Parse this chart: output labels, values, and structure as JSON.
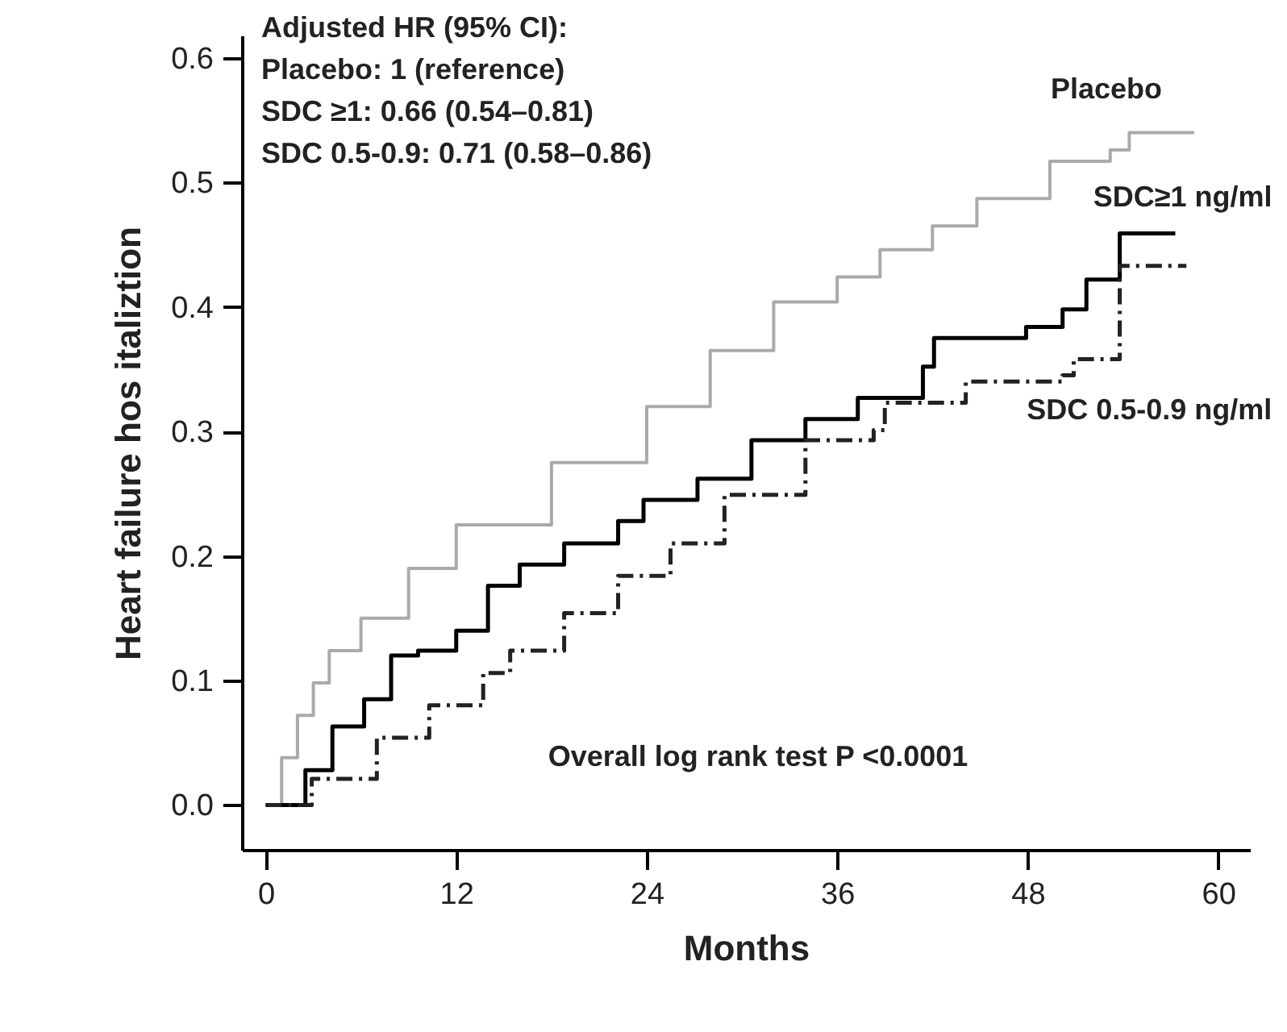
{
  "chart_data": {
    "type": "step",
    "xlabel": "Months",
    "ylabel": "Heart failure hos  italiztion",
    "annotations": [
      "Adjusted HR (95% CI):",
      "Placebo: 1 (reference)",
      "SDC ≥1:  0.66 (0.54–0.81)",
      "SDC 0.5-0.9: 0.71 (0.58–0.86)",
      "Overall log rank test P <0.0001"
    ],
    "xlim": [
      -1.5,
      62
    ],
    "xticks": [
      0,
      12,
      24,
      36,
      48,
      60
    ],
    "ylim": [
      -0.036,
      0.618
    ],
    "yticks": [
      {
        "value": 0,
        "label": "0.0"
      },
      0.1,
      0.2,
      0.3,
      0.4,
      0.5,
      0.6
    ],
    "grid": false,
    "legend": false,
    "series": [
      {
        "name": "Placebo",
        "color": "#aaaaaa",
        "line_style": "solid",
        "x": [
          0,
          1,
          2,
          3,
          4,
          6,
          9,
          12,
          18,
          24,
          28,
          32,
          36,
          38.7,
          42,
          44.8,
          49.4,
          53.2,
          54.4,
          58.5
        ],
        "values": [
          0,
          0.038,
          0.072,
          0.098,
          0.124,
          0.15,
          0.19,
          0.225,
          0.275,
          0.32,
          0.365,
          0.404,
          0.424,
          0.446,
          0.465,
          0.487,
          0.517,
          0.526,
          0.54,
          0.54
        ]
      },
      {
        "name": "SDC≥1 ng/ml",
        "color": "#000000",
        "line_style": "solid",
        "x": [
          0,
          2.5,
          4.2,
          6.2,
          7.9,
          9.6,
          12,
          14,
          16,
          18.8,
          22.2,
          23.8,
          27.2,
          30.6,
          34,
          37.3,
          41.4,
          42.1,
          47.9,
          50.2,
          51.7,
          53.8,
          57.3
        ],
        "values": [
          0,
          0.028,
          0.063,
          0.085,
          0.12,
          0.124,
          0.14,
          0.176,
          0.193,
          0.21,
          0.228,
          0.245,
          0.262,
          0.293,
          0.31,
          0.327,
          0.352,
          0.375,
          0.384,
          0.398,
          0.422,
          0.459,
          0.459
        ]
      },
      {
        "name": "SDC 0.5-0.9 ng/ml",
        "color": "#222222",
        "line_style": "dashed",
        "x": [
          0,
          2.9,
          7,
          10.3,
          13.7,
          15.4,
          18.8,
          22.2,
          25.5,
          28.9,
          34,
          38.3,
          39,
          44.1,
          50.2,
          50.9,
          53.8,
          58
        ],
        "values": [
          0,
          0.021,
          0.054,
          0.08,
          0.106,
          0.124,
          0.154,
          0.184,
          0.21,
          0.249,
          0.293,
          0.301,
          0.323,
          0.34,
          0.345,
          0.358,
          0.433,
          0.433
        ]
      }
    ]
  }
}
